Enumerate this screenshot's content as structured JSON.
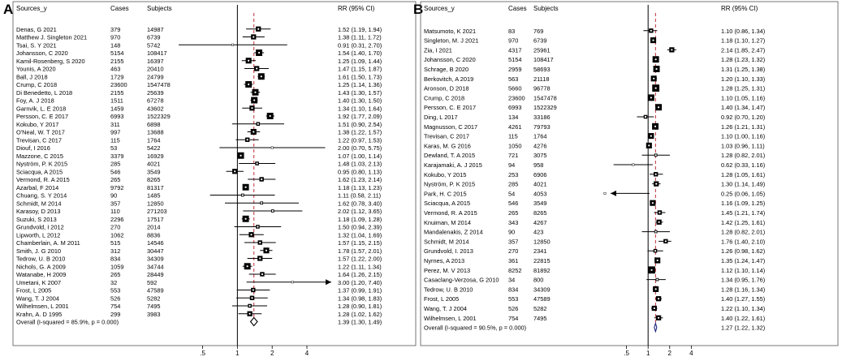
{
  "chart_data": [
    {
      "type": "forest",
      "panel_label": "A",
      "headers": {
        "source": "Sources_y",
        "cases": "Cases",
        "subjects": "Subjects",
        "rr": "RR (95% CI)"
      },
      "scale": "log",
      "xlim": [
        0.3,
        6.5
      ],
      "ticks": [
        {
          "v": 0.5,
          "label": ".5"
        },
        {
          "v": 1,
          "label": "1"
        },
        {
          "v": 2,
          "label": "2"
        },
        {
          "v": 4,
          "label": "4"
        }
      ],
      "overall_line": 1.39,
      "rows": [
        {
          "source": "Denas, G 2021",
          "cases": "379",
          "subjects": "14987",
          "rr": "1.52 (1.19, 1.94)",
          "est": 1.52,
          "lo": 1.19,
          "hi": 1.94,
          "w": 5
        },
        {
          "source": "Matthew J. Singleton 2021",
          "cases": "970",
          "subjects": "6739",
          "rr": "1.38 (1.11, 1.72)",
          "est": 1.38,
          "lo": 1.11,
          "hi": 1.72,
          "w": 5
        },
        {
          "source": "Tsai, S. Y 2021",
          "cases": "148",
          "subjects": "5742",
          "rr": "0.91 (0.31, 2.70)",
          "est": 0.91,
          "lo": 0.31,
          "hi": 2.7,
          "w": 1
        },
        {
          "source": "Johansson, C 2020",
          "cases": "5154",
          "subjects": "108417",
          "rr": "1.54 (1.40, 1.70)",
          "est": 1.54,
          "lo": 1.4,
          "hi": 1.7,
          "w": 7
        },
        {
          "source": "Kamil-Rosenberg, S 2020",
          "cases": "2155",
          "subjects": "16397",
          "rr": "1.25 (1.09, 1.44)",
          "est": 1.25,
          "lo": 1.09,
          "hi": 1.44,
          "w": 6
        },
        {
          "source": "Younis, A 2020",
          "cases": "463",
          "subjects": "20410",
          "rr": "1.47 (1.15, 1.87)",
          "est": 1.47,
          "lo": 1.15,
          "hi": 1.87,
          "w": 5
        },
        {
          "source": "Ball, J 2018",
          "cases": "1729",
          "subjects": "24799",
          "rr": "1.61 (1.50, 1.73)",
          "est": 1.61,
          "lo": 1.5,
          "hi": 1.73,
          "w": 7
        },
        {
          "source": "Crump, C 2018",
          "cases": "23600",
          "subjects": "1547478",
          "rr": "1.25 (1.14, 1.36)",
          "est": 1.25,
          "lo": 1.14,
          "hi": 1.36,
          "w": 7
        },
        {
          "source": "Di Benedetto, L 2018",
          "cases": "2155",
          "subjects": "25639",
          "rr": "1.43 (1.30, 1.57)",
          "est": 1.43,
          "lo": 1.3,
          "hi": 1.57,
          "w": 7
        },
        {
          "source": "Foy, A. J 2018",
          "cases": "1511",
          "subjects": "67278",
          "rr": "1.40 (1.30, 1.50)",
          "est": 1.4,
          "lo": 1.3,
          "hi": 1.5,
          "w": 7
        },
        {
          "source": "Garnvik, L. E 2018",
          "cases": "1459",
          "subjects": "43602",
          "rr": "1.34 (1.10, 1.64)",
          "est": 1.34,
          "lo": 1.1,
          "hi": 1.64,
          "w": 5
        },
        {
          "source": "Persson, C. E 2017",
          "cases": "6993",
          "subjects": "1522329",
          "rr": "1.92 (1.77, 2.09)",
          "est": 1.92,
          "lo": 1.77,
          "hi": 2.09,
          "w": 7
        },
        {
          "source": "Kokubo, Y 2017",
          "cases": "311",
          "subjects": "6898",
          "rr": "1.51 (0.90, 2.54)",
          "est": 1.51,
          "lo": 0.9,
          "hi": 2.54,
          "w": 3
        },
        {
          "source": "O'Neal, W. T 2017",
          "cases": "997",
          "subjects": "13688",
          "rr": "1.38 (1.22, 1.57)",
          "est": 1.38,
          "lo": 1.22,
          "hi": 1.57,
          "w": 6
        },
        {
          "source": "Trevisan, C 2017",
          "cases": "115",
          "subjects": "1764",
          "rr": "1.22 (0.97, 1.53)",
          "est": 1.22,
          "lo": 0.97,
          "hi": 1.53,
          "w": 4
        },
        {
          "source": "Diouf, I 2016",
          "cases": "53",
          "subjects": "5422",
          "rr": "2.00 (0.70, 5.75)",
          "est": 2.0,
          "lo": 0.7,
          "hi": 5.75,
          "w": 1
        },
        {
          "source": "Mazzone, C 2015",
          "cases": "3379",
          "subjects": "16929",
          "rr": "1.07 (1.00, 1.14)",
          "est": 1.07,
          "lo": 1.0,
          "hi": 1.14,
          "w": 7
        },
        {
          "source": "Nyström, P. K 2015",
          "cases": "285",
          "subjects": "4021",
          "rr": "1.48 (1.03, 2.13)",
          "est": 1.48,
          "lo": 1.03,
          "hi": 2.13,
          "w": 3
        },
        {
          "source": "Sciacqua, A 2015",
          "cases": "546",
          "subjects": "3549",
          "rr": "0.95 (0.80, 1.13)",
          "est": 0.95,
          "lo": 0.8,
          "hi": 1.13,
          "w": 5
        },
        {
          "source": "Vermond, R. A 2015",
          "cases": "265",
          "subjects": "8265",
          "rr": "1.62 (1.23, 2.14)",
          "est": 1.62,
          "lo": 1.23,
          "hi": 2.14,
          "w": 4
        },
        {
          "source": "Azarbal, F 2014",
          "cases": "9792",
          "subjects": "81317",
          "rr": "1.18 (1.13, 1.23)",
          "est": 1.18,
          "lo": 1.13,
          "hi": 1.23,
          "w": 7
        },
        {
          "source": "Chuang, S. Y 2014",
          "cases": "90",
          "subjects": "1485",
          "rr": "1.11 (0.58, 2.11)",
          "est": 1.11,
          "lo": 0.58,
          "hi": 2.11,
          "w": 2
        },
        {
          "source": "Schmidt, M 2014",
          "cases": "357",
          "subjects": "12850",
          "rr": "1.62 (0.78, 3.40)",
          "est": 1.62,
          "lo": 0.78,
          "hi": 3.4,
          "w": 2
        },
        {
          "source": "Karasoy, D 2013",
          "cases": "110",
          "subjects": "271203",
          "rr": "2.02 (1.12, 3.65)",
          "est": 2.02,
          "lo": 1.12,
          "hi": 3.65,
          "w": 2
        },
        {
          "source": "Suzuki, S 2013",
          "cases": "2296",
          "subjects": "17517",
          "rr": "1.18 (1.09, 1.28)",
          "est": 1.18,
          "lo": 1.09,
          "hi": 1.28,
          "w": 7
        },
        {
          "source": "Grundvold, I 2012",
          "cases": "270",
          "subjects": "2014",
          "rr": "1.50 (0.94, 2.39)",
          "est": 1.5,
          "lo": 0.94,
          "hi": 2.39,
          "w": 3
        },
        {
          "source": "Lipworth, L 2012",
          "cases": "1062",
          "subjects": "8836",
          "rr": "1.32 (1.04, 1.69)",
          "est": 1.32,
          "lo": 1.04,
          "hi": 1.69,
          "w": 5
        },
        {
          "source": "Chamberlain, A. M 2011",
          "cases": "515",
          "subjects": "14546",
          "rr": "1.57 (1.15, 2.15)",
          "est": 1.57,
          "lo": 1.15,
          "hi": 2.15,
          "w": 4
        },
        {
          "source": "Smith, J. G 2010",
          "cases": "312",
          "subjects": "30447",
          "rr": "1.78 (1.57, 2.01)",
          "est": 1.78,
          "lo": 1.57,
          "hi": 2.01,
          "w": 6
        },
        {
          "source": "Tedrow, U. B 2010",
          "cases": "834",
          "subjects": "34309",
          "rr": "1.57 (1.22, 2.00)",
          "est": 1.57,
          "lo": 1.22,
          "hi": 2.0,
          "w": 5
        },
        {
          "source": "Nichols, G. A 2009",
          "cases": "1059",
          "subjects": "34744",
          "rr": "1.22 (1.11, 1.34)",
          "est": 1.22,
          "lo": 1.11,
          "hi": 1.34,
          "w": 7
        },
        {
          "source": "Watanabe, H 2009",
          "cases": "265",
          "subjects": "28449",
          "rr": "1.64 (1.26, 2.15)",
          "est": 1.64,
          "lo": 1.26,
          "hi": 2.15,
          "w": 4
        },
        {
          "source": "Umetani, K 2007",
          "cases": "32",
          "subjects": "592",
          "rr": "3.00 (1.20, 7.40)",
          "est": 3.0,
          "lo": 1.2,
          "hi": 7.4,
          "w": 1
        },
        {
          "source": "Frost, L 2005",
          "cases": "553",
          "subjects": "47589",
          "rr": "1.37 (0.99, 1.91)",
          "est": 1.37,
          "lo": 0.99,
          "hi": 1.91,
          "w": 4
        },
        {
          "source": "Wang, T. J 2004",
          "cases": "526",
          "subjects": "5282",
          "rr": "1.34 (0.98, 1.83)",
          "est": 1.34,
          "lo": 0.98,
          "hi": 1.83,
          "w": 4
        },
        {
          "source": "Wilhelmsen, L 2001",
          "cases": "754",
          "subjects": "7495",
          "rr": "1.28 (0.90, 1.81)",
          "est": 1.28,
          "lo": 0.9,
          "hi": 1.81,
          "w": 3
        },
        {
          "source": "Krahn, A. D 1995",
          "cases": "299",
          "subjects": "3983",
          "rr": "1.28 (1.02, 1.62)",
          "est": 1.28,
          "lo": 1.02,
          "hi": 1.62,
          "w": 5
        }
      ],
      "overall": {
        "label": "Overall  (I-squared = 85.9%, p = 0.000)",
        "rr": "1.39 (1.30, 1.49)",
        "est": 1.39,
        "lo": 1.3,
        "hi": 1.49
      }
    },
    {
      "type": "forest",
      "panel_label": "B",
      "headers": {
        "source": "Sources_y",
        "cases": "Cases",
        "subjects": "Subjects",
        "rr": "RR (95% CI)"
      },
      "scale": "log",
      "xlim": [
        0.3,
        6.5
      ],
      "ticks": [
        {
          "v": 0.5,
          "label": ".5"
        },
        {
          "v": 1,
          "label": "1"
        },
        {
          "v": 2,
          "label": "2"
        },
        {
          "v": 4,
          "label": "4"
        }
      ],
      "overall_line": 1.27,
      "rows": [
        {
          "source": "Matsumoto, K 2021",
          "cases": "83",
          "subjects": "769",
          "rr": "1.10 (0.86, 1.34)",
          "est": 1.1,
          "lo": 0.86,
          "hi": 1.34,
          "w": 4
        },
        {
          "source": "Singleton, M. J 2021",
          "cases": "970",
          "subjects": "6739",
          "rr": "1.18 (1.10, 1.27)",
          "est": 1.18,
          "lo": 1.1,
          "hi": 1.27,
          "w": 6
        },
        {
          "source": "Zia, I 2021",
          "cases": "4317",
          "subjects": "25961",
          "rr": "2.14 (1.85, 2.47)",
          "est": 2.14,
          "lo": 1.85,
          "hi": 2.47,
          "w": 5
        },
        {
          "source": "Johansson, C 2020",
          "cases": "5154",
          "subjects": "108417",
          "rr": "1.28 (1.23, 1.32)",
          "est": 1.28,
          "lo": 1.23,
          "hi": 1.32,
          "w": 7
        },
        {
          "source": "Schrage, B 2020",
          "cases": "2959",
          "subjects": "58693",
          "rr": "1.31 (1.25, 1.38)",
          "est": 1.31,
          "lo": 1.25,
          "hi": 1.38,
          "w": 7
        },
        {
          "source": "Berkovitch, A 2019",
          "cases": "563",
          "subjects": "21118",
          "rr": "1.20 (1.10, 1.33)",
          "est": 1.2,
          "lo": 1.1,
          "hi": 1.33,
          "w": 6
        },
        {
          "source": "Aronson, D 2018",
          "cases": "5660",
          "subjects": "96778",
          "rr": "1.28 (1.25, 1.31)",
          "est": 1.28,
          "lo": 1.25,
          "hi": 1.31,
          "w": 8
        },
        {
          "source": "Crump, C 2018",
          "cases": "23600",
          "subjects": "1547478",
          "rr": "1.10 (1.05, 1.16)",
          "est": 1.1,
          "lo": 1.05,
          "hi": 1.16,
          "w": 7
        },
        {
          "source": "Persson, C. E 2017",
          "cases": "6993",
          "subjects": "1522329",
          "rr": "1.40 (1.34, 1.47)",
          "est": 1.4,
          "lo": 1.34,
          "hi": 1.47,
          "w": 7
        },
        {
          "source": "Ding, L 2017",
          "cases": "134",
          "subjects": "33186",
          "rr": "0.92 (0.70, 1.20)",
          "est": 0.92,
          "lo": 0.7,
          "hi": 1.2,
          "w": 3
        },
        {
          "source": "Magnusson, C 2017",
          "cases": "4261",
          "subjects": "79793",
          "rr": "1.26 (1.21, 1.31)",
          "est": 1.26,
          "lo": 1.21,
          "hi": 1.31,
          "w": 7
        },
        {
          "source": "Trevisan, C 2017",
          "cases": "115",
          "subjects": "1764",
          "rr": "1.10 (1.00, 1.16)",
          "est": 1.1,
          "lo": 1.0,
          "hi": 1.16,
          "w": 6
        },
        {
          "source": "Karas, M. G 2016",
          "cases": "1050",
          "subjects": "4276",
          "rr": "1.03 (0.96, 1.11)",
          "est": 1.03,
          "lo": 0.96,
          "hi": 1.11,
          "w": 6
        },
        {
          "source": "Dewland, T. A 2015",
          "cases": "721",
          "subjects": "3075",
          "rr": "1.28 (0.82, 2.01)",
          "est": 1.28,
          "lo": 0.82,
          "hi": 2.01,
          "w": 2
        },
        {
          "source": "Karajamaki, A. J 2015",
          "cases": "94",
          "subjects": "958",
          "rr": "0.62 (0.33, 1.16)",
          "est": 0.62,
          "lo": 0.33,
          "hi": 1.16,
          "w": 1
        },
        {
          "source": "Kokubo, Y 2015",
          "cases": "253",
          "subjects": "6906",
          "rr": "1.28 (1.05, 1.61)",
          "est": 1.28,
          "lo": 1.05,
          "hi": 1.61,
          "w": 4
        },
        {
          "source": "Nyström, P. K 2015",
          "cases": "285",
          "subjects": "4021",
          "rr": "1.30 (1.14, 1.49)",
          "est": 1.3,
          "lo": 1.14,
          "hi": 1.49,
          "w": 5
        },
        {
          "source": "Park, H. C 2015",
          "cases": "54",
          "subjects": "4053",
          "rr": "0.25 (0.06, 1.05)",
          "est": 0.25,
          "lo": 0.06,
          "hi": 1.05,
          "w": 1
        },
        {
          "source": "Sciacqua, A 2015",
          "cases": "546",
          "subjects": "3549",
          "rr": "1.16 (1.09, 1.25)",
          "est": 1.16,
          "lo": 1.09,
          "hi": 1.25,
          "w": 6
        },
        {
          "source": "Vermond, R. A 2015",
          "cases": "265",
          "subjects": "8265",
          "rr": "1.45 (1.21, 1.74)",
          "est": 1.45,
          "lo": 1.21,
          "hi": 1.74,
          "w": 4
        },
        {
          "source": "Knuiman, M 2014",
          "cases": "343",
          "subjects": "4267",
          "rr": "1.42 (1.25, 1.61)",
          "est": 1.42,
          "lo": 1.25,
          "hi": 1.61,
          "w": 5
        },
        {
          "source": "Mandalenakis, Z 2014",
          "cases": "90",
          "subjects": "423",
          "rr": "1.28 (0.82, 2.01)",
          "est": 1.28,
          "lo": 0.82,
          "hi": 2.01,
          "w": 2
        },
        {
          "source": "Schmidt, M 2014",
          "cases": "357",
          "subjects": "12850",
          "rr": "1.76 (1.40, 2.10)",
          "est": 1.76,
          "lo": 1.4,
          "hi": 2.1,
          "w": 4
        },
        {
          "source": "Grundvold, I. 2013",
          "cases": "270",
          "subjects": "2341",
          "rr": "1.26 (0.98, 1.62)",
          "est": 1.26,
          "lo": 0.98,
          "hi": 1.62,
          "w": 3
        },
        {
          "source": "Nyrnes, A 2013",
          "cases": "361",
          "subjects": "22815",
          "rr": "1.35 (1.24, 1.47)",
          "est": 1.35,
          "lo": 1.24,
          "hi": 1.47,
          "w": 6
        },
        {
          "source": "Perez, M. V 2013",
          "cases": "8252",
          "subjects": "81892",
          "rr": "1.12 (1.10, 1.14)",
          "est": 1.12,
          "lo": 1.1,
          "hi": 1.14,
          "w": 8
        },
        {
          "source": "Casaclang-Verzosa, G 2010",
          "cases": "34",
          "subjects": "800",
          "rr": "1.34 (0.95, 1.76)",
          "est": 1.34,
          "lo": 0.95,
          "hi": 1.76,
          "w": 2
        },
        {
          "source": "Tedrow, U. B 2010",
          "cases": "834",
          "subjects": "34309",
          "rr": "1.28 (1.16, 1.34)",
          "est": 1.28,
          "lo": 1.16,
          "hi": 1.34,
          "w": 6
        },
        {
          "source": "Frost, L 2005",
          "cases": "553",
          "subjects": "47589",
          "rr": "1.40 (1.27, 1.55)",
          "est": 1.4,
          "lo": 1.27,
          "hi": 1.55,
          "w": 5
        },
        {
          "source": "Wang, T. J 2004",
          "cases": "526",
          "subjects": "5282",
          "rr": "1.22 (1.10, 1.34)",
          "est": 1.22,
          "lo": 1.1,
          "hi": 1.34,
          "w": 5
        },
        {
          "source": "Wilhelmsen, L 2001",
          "cases": "754",
          "subjects": "7495",
          "rr": "1.40 (1.22, 1.61)",
          "est": 1.4,
          "lo": 1.22,
          "hi": 1.61,
          "w": 5
        }
      ],
      "overall": {
        "label": "Overall  (I-squared = 90.5%, p = 0.000)",
        "rr": "1.27 (1.22, 1.32)",
        "est": 1.27,
        "lo": 1.22,
        "hi": 1.32
      }
    }
  ]
}
